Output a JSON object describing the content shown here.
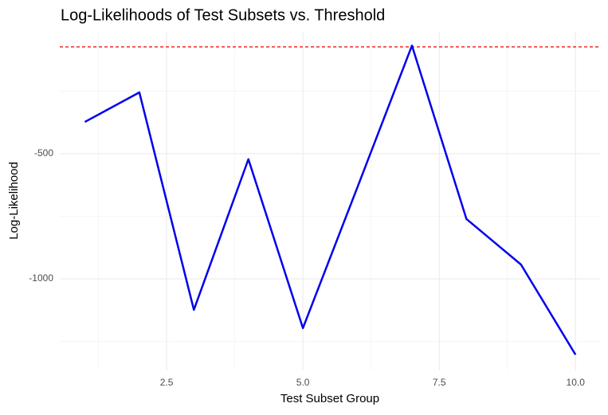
{
  "chart_data": {
    "type": "line",
    "title": "Log-Likelihoods of Test Subsets vs. Threshold",
    "x_label": "Test Subset Group",
    "y_label": "Log-Likelihood",
    "x": [
      1,
      2,
      3,
      4,
      5,
      6,
      7,
      8,
      9,
      10
    ],
    "series": [
      {
        "color": "#0000ee",
        "values": [
          -373,
          -255,
          -1124,
          -522,
          -1197,
          -634,
          -68,
          -761,
          -943,
          -1303
        ]
      }
    ],
    "threshold": {
      "value": -73,
      "color": "#ee0000"
    },
    "xlim": [
      0.54,
      10.45
    ],
    "ylim": [
      -1366,
      -13
    ],
    "xticks": [
      {
        "value": 2.5,
        "label": "2.5"
      },
      {
        "value": 5,
        "label": "5.0"
      },
      {
        "value": 7.5,
        "label": "7.5"
      },
      {
        "value": 10,
        "label": "10.0"
      }
    ],
    "yticks": [
      -500,
      -1000
    ],
    "minor_xticks": [
      1.25,
      3.75,
      6.25,
      8.75
    ],
    "minor_yticks": [
      -250,
      -750,
      -1250
    ],
    "grid": true
  }
}
